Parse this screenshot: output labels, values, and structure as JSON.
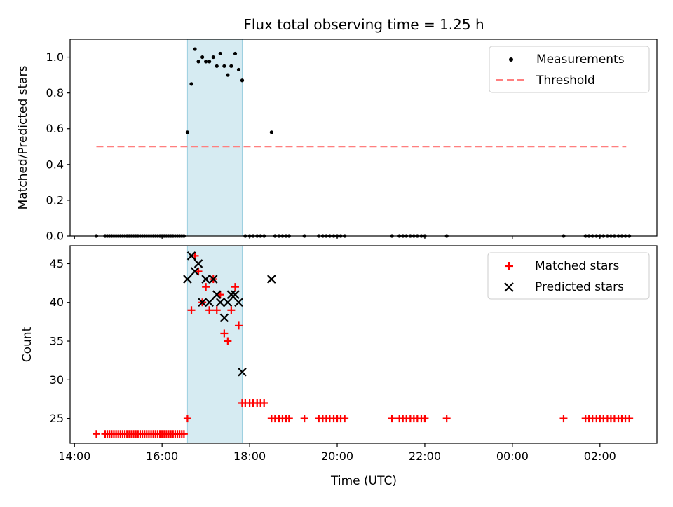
{
  "chart_data": {
    "type": "scatter",
    "title": "Flux total observing time = 1.25 h",
    "xlabel": "Time (UTC)",
    "x_unit": "hours since 14:00 UTC",
    "xlim": [
      -0.1,
      13.3
    ],
    "x_ticks": [
      {
        "value": 0,
        "label": "14:00"
      },
      {
        "value": 2,
        "label": "16:00"
      },
      {
        "value": 4,
        "label": "18:00"
      },
      {
        "value": 6,
        "label": "20:00"
      },
      {
        "value": 8,
        "label": "22:00"
      },
      {
        "value": 10,
        "label": "00:00"
      },
      {
        "value": 12,
        "label": "02:00"
      }
    ],
    "shaded_span": [
      2.58,
      3.83
    ],
    "panels": [
      {
        "id": "top",
        "ylabel": "Matched/Predicted stars",
        "ylim": [
          0,
          1.1
        ],
        "y_ticks": [
          {
            "value": 0.0,
            "label": "0.0"
          },
          {
            "value": 0.2,
            "label": "0.2"
          },
          {
            "value": 0.4,
            "label": "0.4"
          },
          {
            "value": 0.6,
            "label": "0.6"
          },
          {
            "value": 0.8,
            "label": "0.8"
          },
          {
            "value": 1.0,
            "label": "1.0"
          }
        ],
        "legend": [
          {
            "label": "Measurements",
            "marker": "dot",
            "color": "#000000"
          },
          {
            "label": "Threshold",
            "marker": "dashed-line",
            "color": "#ff7f7f"
          }
        ],
        "threshold": {
          "x_start": 0.5,
          "x_end": 12.6,
          "y": 0.5
        },
        "measurements": {
          "x": [
            0.5,
            0.7,
            0.75,
            0.8,
            0.85,
            0.9,
            0.95,
            1.0,
            1.05,
            1.1,
            1.15,
            1.2,
            1.25,
            1.3,
            1.35,
            1.4,
            1.45,
            1.5,
            1.55,
            1.6,
            1.65,
            1.7,
            1.75,
            1.8,
            1.85,
            1.9,
            1.95,
            2.0,
            2.05,
            2.1,
            2.15,
            2.2,
            2.25,
            2.3,
            2.35,
            2.4,
            2.45,
            2.5,
            2.58,
            2.67,
            2.75,
            2.83,
            2.92,
            3.0,
            3.08,
            3.17,
            3.25,
            3.33,
            3.42,
            3.5,
            3.58,
            3.67,
            3.75,
            3.83,
            3.9,
            4.0,
            4.08,
            4.17,
            4.25,
            4.33,
            4.5,
            4.58,
            4.67,
            4.75,
            4.83,
            4.9,
            5.25,
            5.58,
            5.67,
            5.75,
            5.83,
            5.92,
            6.0,
            6.08,
            6.17,
            7.25,
            7.42,
            7.5,
            7.58,
            7.67,
            7.75,
            7.83,
            7.92,
            8.0,
            8.5,
            11.17,
            11.67,
            11.75,
            11.83,
            11.92,
            12.0,
            12.08,
            12.17,
            12.25,
            12.33,
            12.42,
            12.5,
            12.58,
            12.67
          ],
          "y": [
            0,
            0,
            0,
            0,
            0,
            0,
            0,
            0,
            0,
            0,
            0,
            0,
            0,
            0,
            0,
            0,
            0,
            0,
            0,
            0,
            0,
            0,
            0,
            0,
            0,
            0,
            0,
            0,
            0,
            0,
            0,
            0,
            0,
            0,
            0,
            0,
            0,
            0,
            0.58,
            0.85,
            1.045,
            0.975,
            1.0,
            0.975,
            0.975,
            1.0,
            0.95,
            1.02,
            0.95,
            0.9,
            0.95,
            1.02,
            0.93,
            0.87,
            0,
            0,
            0,
            0,
            0,
            0,
            0.58,
            0,
            0,
            0,
            0,
            0,
            0,
            0,
            0,
            0,
            0,
            0,
            0,
            0,
            0,
            0,
            0,
            0,
            0,
            0,
            0,
            0,
            0,
            0,
            0,
            0,
            0,
            0,
            0,
            0,
            0,
            0,
            0,
            0,
            0,
            0,
            0,
            0,
            0
          ]
        }
      },
      {
        "id": "bottom",
        "ylabel": "Count",
        "ylim": [
          21.8,
          47.3
        ],
        "y_ticks": [
          {
            "value": 25,
            "label": "25"
          },
          {
            "value": 30,
            "label": "30"
          },
          {
            "value": 35,
            "label": "35"
          },
          {
            "value": 40,
            "label": "40"
          },
          {
            "value": 45,
            "label": "45"
          }
        ],
        "legend": [
          {
            "label": "Matched stars",
            "marker": "plus",
            "color": "#ff0000"
          },
          {
            "label": "Predicted stars",
            "marker": "x",
            "color": "#000000"
          }
        ],
        "series": [
          {
            "name": "Matched stars",
            "marker": "plus",
            "color": "#ff0000",
            "x": [
              0.5,
              0.7,
              0.75,
              0.8,
              0.85,
              0.9,
              0.95,
              1.0,
              1.05,
              1.1,
              1.15,
              1.2,
              1.25,
              1.3,
              1.35,
              1.4,
              1.45,
              1.5,
              1.55,
              1.6,
              1.65,
              1.7,
              1.75,
              1.8,
              1.85,
              1.9,
              1.95,
              2.0,
              2.05,
              2.1,
              2.15,
              2.2,
              2.25,
              2.3,
              2.35,
              2.4,
              2.45,
              2.5,
              2.58,
              2.67,
              2.75,
              2.83,
              2.92,
              3.0,
              3.08,
              3.17,
              3.25,
              3.33,
              3.42,
              3.5,
              3.58,
              3.67,
              3.75,
              3.83,
              3.9,
              4.0,
              4.08,
              4.17,
              4.25,
              4.33,
              4.5,
              4.58,
              4.67,
              4.75,
              4.83,
              4.9,
              5.25,
              5.58,
              5.67,
              5.75,
              5.83,
              5.92,
              6.0,
              6.08,
              6.17,
              7.25,
              7.42,
              7.5,
              7.58,
              7.67,
              7.75,
              7.83,
              7.92,
              8.0,
              8.5,
              11.17,
              11.67,
              11.75,
              11.83,
              11.92,
              12.0,
              12.08,
              12.17,
              12.25,
              12.33,
              12.42,
              12.5,
              12.58,
              12.67
            ],
            "y": [
              23,
              23,
              23,
              23,
              23,
              23,
              23,
              23,
              23,
              23,
              23,
              23,
              23,
              23,
              23,
              23,
              23,
              23,
              23,
              23,
              23,
              23,
              23,
              23,
              23,
              23,
              23,
              23,
              23,
              23,
              23,
              23,
              23,
              23,
              23,
              23,
              23,
              23,
              25,
              39,
              46,
              44,
              40,
              42,
              39,
              43,
              39,
              41,
              36,
              35,
              39,
              42,
              37,
              27,
              27,
              27,
              27,
              27,
              27,
              27,
              25,
              25,
              25,
              25,
              25,
              25,
              25,
              25,
              25,
              25,
              25,
              25,
              25,
              25,
              25,
              25,
              25,
              25,
              25,
              25,
              25,
              25,
              25,
              25,
              25,
              25,
              25,
              25,
              25,
              25,
              25,
              25,
              25,
              25,
              25,
              25,
              25,
              25,
              25
            ]
          },
          {
            "name": "Predicted stars",
            "marker": "x",
            "color": "#000000",
            "x": [
              2.58,
              2.67,
              2.75,
              2.83,
              2.92,
              3.0,
              3.08,
              3.17,
              3.25,
              3.33,
              3.42,
              3.5,
              3.58,
              3.67,
              3.75,
              3.83,
              4.5
            ],
            "y": [
              43,
              46,
              44,
              45,
              40,
              43,
              40,
              43,
              41,
              40,
              38,
              40,
              41,
              41,
              40,
              31,
              43
            ]
          }
        ]
      }
    ]
  }
}
